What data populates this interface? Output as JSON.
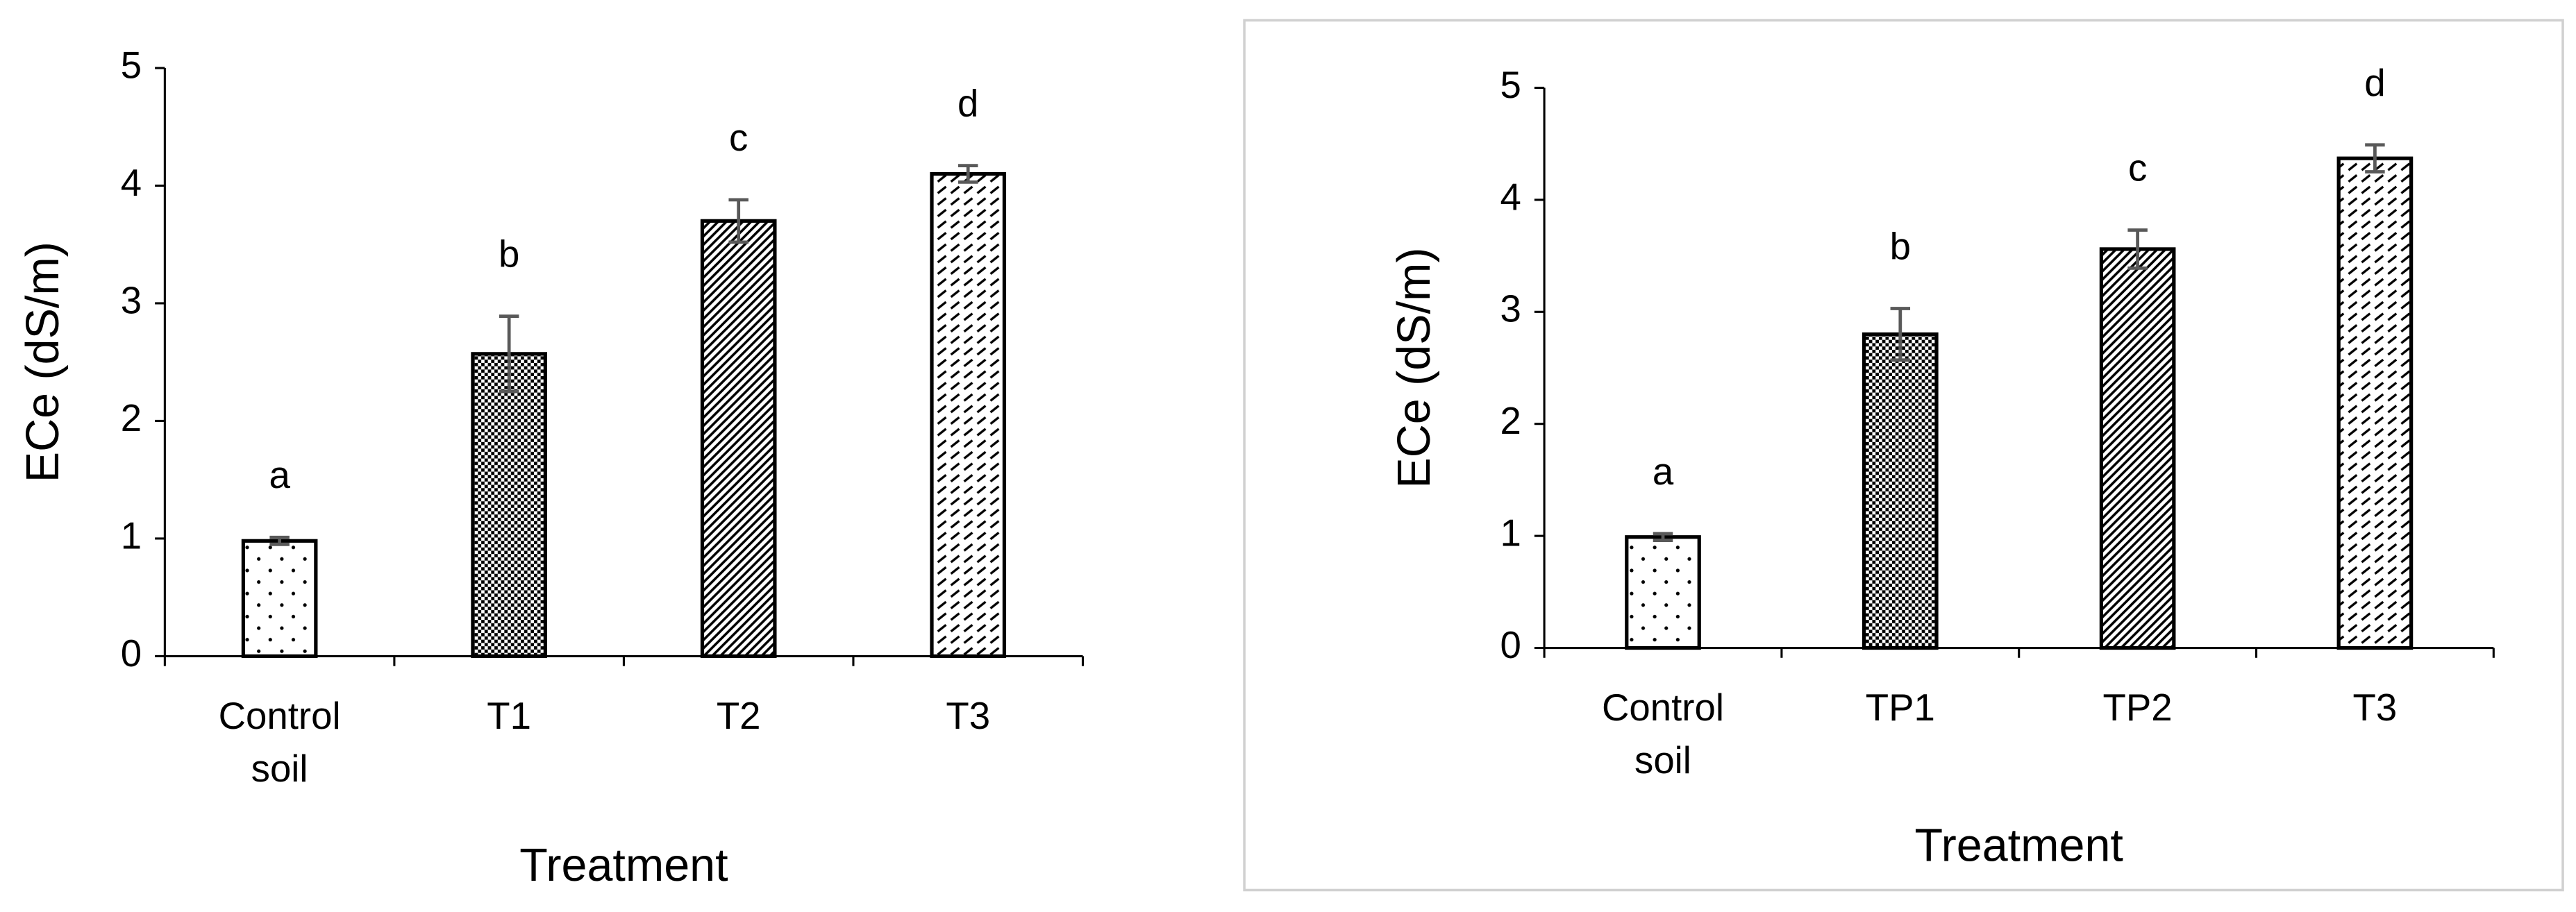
{
  "chart_data": [
    {
      "type": "bar",
      "x_label": "Treatment",
      "y_label": "ECe (dS/m)",
      "categories": [
        "Control soil",
        "T1",
        "T2",
        "T3"
      ],
      "values": [
        0.98,
        2.57,
        3.7,
        4.1
      ],
      "errors": [
        0.03,
        0.32,
        0.18,
        0.07
      ],
      "annotations": [
        "a",
        "b",
        "c",
        "d"
      ],
      "patterns": [
        "dots",
        "checker",
        "diagonal",
        "dashes"
      ],
      "ylim": [
        0,
        5
      ],
      "yticks": [
        0,
        1,
        2,
        3,
        4,
        5
      ],
      "border": false
    },
    {
      "type": "bar",
      "x_label": "Treatment",
      "y_label": "ECe (dS/m)",
      "categories": [
        "Control soil",
        "TP1",
        "TP2",
        "T3"
      ],
      "values": [
        0.99,
        2.8,
        3.56,
        4.37
      ],
      "errors": [
        0.03,
        0.23,
        0.17,
        0.12
      ],
      "annotations": [
        "a",
        "b",
        "c",
        "d"
      ],
      "patterns": [
        "dots",
        "checker",
        "diagonal",
        "dashes"
      ],
      "ylim": [
        0,
        5
      ],
      "yticks": [
        0,
        1,
        2,
        3,
        4,
        5
      ],
      "border": true
    }
  ]
}
